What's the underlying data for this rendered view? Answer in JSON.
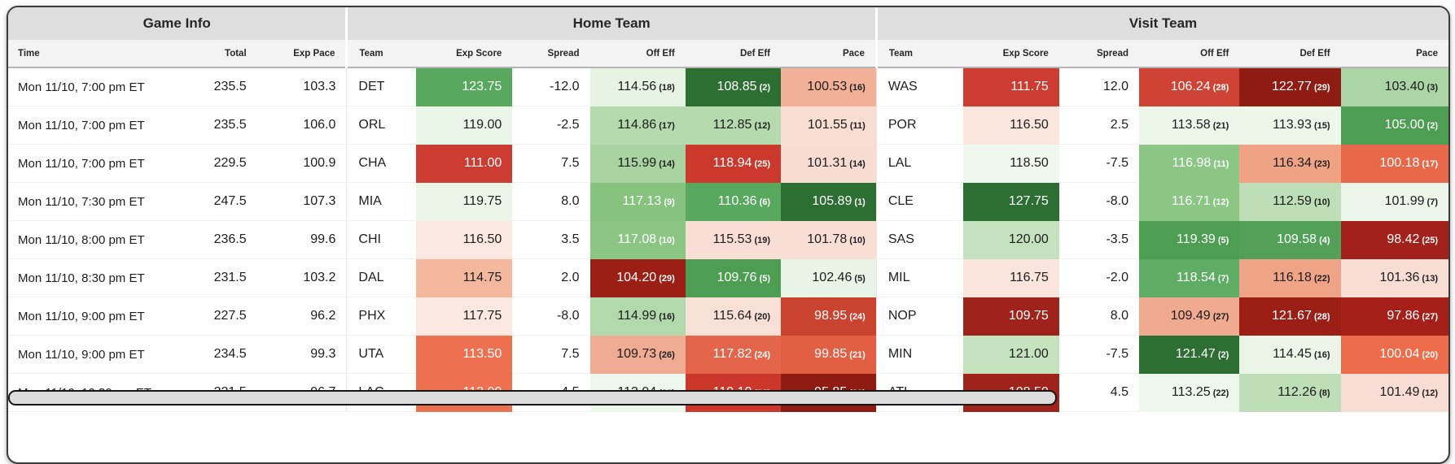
{
  "header": {
    "groups": [
      {
        "label": "Game Info",
        "span": 3
      },
      {
        "label": "Home Team",
        "span": 6
      },
      {
        "label": "Visit Team",
        "span": 6
      }
    ],
    "columns": [
      "Time",
      "Total",
      "Exp Pace",
      "Team",
      "Exp Score",
      "Spread",
      "Off Eff",
      "Def Eff",
      "Pace",
      "Team",
      "Exp Score",
      "Spread",
      "Off Eff",
      "Def Eff",
      "Pace"
    ]
  },
  "colors": {
    "group_header_bg": "#dedede",
    "col_header_bg": "#f3f3f3",
    "card_border": "#3a3a3a",
    "positive_green_dark": "#2d6e33",
    "negative_red_dark": "#8e1c12"
  },
  "scrollbar": {
    "thumb_width_pct": 72.6
  },
  "rows": [
    {
      "time": "Mon 11/10, 7:00 pm ET",
      "total": "235.5",
      "exp_pace": "103.3",
      "home": {
        "team": "DET",
        "exp_score": {
          "v": "123.75",
          "bg": "#58a85e",
          "fg": "#ffffff"
        },
        "spread": "-12.0",
        "off_eff": {
          "v": "114.56",
          "r": "18",
          "bg": "#e7f3e3",
          "fg": "#1d1d1d"
        },
        "def_eff": {
          "v": "108.85",
          "r": "2",
          "bg": "#2d6e33",
          "fg": "#ffffff"
        },
        "pace": {
          "v": "100.53",
          "r": "16",
          "bg": "#f2b096",
          "fg": "#1d1d1d"
        }
      },
      "visit": {
        "team": "WAS",
        "exp_score": {
          "v": "111.75",
          "bg": "#cd3c30",
          "fg": "#ffffff"
        },
        "spread": "12.0",
        "off_eff": {
          "v": "106.24",
          "r": "28",
          "bg": "#cf4334",
          "fg": "#ffffff"
        },
        "def_eff": {
          "v": "122.77",
          "r": "29",
          "bg": "#8e1c12",
          "fg": "#ffffff"
        },
        "pace": {
          "v": "103.40",
          "r": "3",
          "bg": "#abd5a4",
          "fg": "#1d1d1d"
        }
      }
    },
    {
      "time": "Mon 11/10, 7:00 pm ET",
      "total": "235.5",
      "exp_pace": "106.0",
      "home": {
        "team": "ORL",
        "exp_score": {
          "v": "119.00",
          "bg": "#e9f5e6",
          "fg": "#1d1d1d"
        },
        "spread": "-2.5",
        "off_eff": {
          "v": "114.86",
          "r": "17",
          "bg": "#b4daad",
          "fg": "#1d1d1d"
        },
        "def_eff": {
          "v": "112.85",
          "r": "12",
          "bg": "#b4daad",
          "fg": "#1d1d1d"
        },
        "pace": {
          "v": "101.55",
          "r": "11",
          "bg": "#f8ddd3",
          "fg": "#1d1d1d"
        }
      },
      "visit": {
        "team": "POR",
        "exp_score": {
          "v": "116.50",
          "bg": "#fae6dd",
          "fg": "#1d1d1d"
        },
        "spread": "2.5",
        "off_eff": {
          "v": "113.58",
          "r": "21",
          "bg": "#ecf6e9",
          "fg": "#1d1d1d"
        },
        "def_eff": {
          "v": "113.93",
          "r": "15",
          "bg": "#ecf6e9",
          "fg": "#1d1d1d"
        },
        "pace": {
          "v": "105.00",
          "r": "2",
          "bg": "#4d9e53",
          "fg": "#ffffff"
        }
      }
    },
    {
      "time": "Mon 11/10, 7:00 pm ET",
      "total": "229.5",
      "exp_pace": "100.9",
      "home": {
        "team": "CHA",
        "exp_score": {
          "v": "111.00",
          "bg": "#cd3c30",
          "fg": "#ffffff"
        },
        "spread": "7.5",
        "off_eff": {
          "v": "115.99",
          "r": "14",
          "bg": "#a9d3a1",
          "fg": "#1d1d1d"
        },
        "def_eff": {
          "v": "118.94",
          "r": "25",
          "bg": "#cb392c",
          "fg": "#ffffff"
        },
        "pace": {
          "v": "101.31",
          "r": "14",
          "bg": "#f8dcd2",
          "fg": "#1d1d1d"
        }
      },
      "visit": {
        "team": "LAL",
        "exp_score": {
          "v": "118.50",
          "bg": "#f0f8ee",
          "fg": "#1d1d1d"
        },
        "spread": "-7.5",
        "off_eff": {
          "v": "116.98",
          "r": "11",
          "bg": "#8bc685",
          "fg": "#ffffff"
        },
        "def_eff": {
          "v": "116.34",
          "r": "23",
          "bg": "#f0a285",
          "fg": "#1d1d1d"
        },
        "pace": {
          "v": "100.18",
          "r": "17",
          "bg": "#e8694a",
          "fg": "#ffffff"
        }
      }
    },
    {
      "time": "Mon 11/10, 7:30 pm ET",
      "total": "247.5",
      "exp_pace": "107.3",
      "home": {
        "team": "MIA",
        "exp_score": {
          "v": "119.75",
          "bg": "#ebf6e8",
          "fg": "#1d1d1d"
        },
        "spread": "8.0",
        "off_eff": {
          "v": "117.13",
          "r": "9",
          "bg": "#85c37f",
          "fg": "#ffffff"
        },
        "def_eff": {
          "v": "110.36",
          "r": "6",
          "bg": "#58a85e",
          "fg": "#ffffff"
        },
        "pace": {
          "v": "105.89",
          "r": "1",
          "bg": "#2d6e33",
          "fg": "#ffffff"
        }
      },
      "visit": {
        "team": "CLE",
        "exp_score": {
          "v": "127.75",
          "bg": "#2d6e33",
          "fg": "#ffffff"
        },
        "spread": "-8.0",
        "off_eff": {
          "v": "116.71",
          "r": "12",
          "bg": "#8bc685",
          "fg": "#ffffff"
        },
        "def_eff": {
          "v": "112.59",
          "r": "10",
          "bg": "#bedeb7",
          "fg": "#1d1d1d"
        },
        "pace": {
          "v": "101.99",
          "r": "7",
          "bg": "#edf6ea",
          "fg": "#1d1d1d"
        }
      }
    },
    {
      "time": "Mon 11/10, 8:00 pm ET",
      "total": "236.5",
      "exp_pace": "99.6",
      "home": {
        "team": "CHI",
        "exp_score": {
          "v": "116.50",
          "bg": "#fbe8e0",
          "fg": "#1d1d1d"
        },
        "spread": "3.5",
        "off_eff": {
          "v": "117.08",
          "r": "10",
          "bg": "#8bc685",
          "fg": "#ffffff"
        },
        "def_eff": {
          "v": "115.53",
          "r": "19",
          "bg": "#f9ded5",
          "fg": "#1d1d1d"
        },
        "pace": {
          "v": "101.78",
          "r": "10",
          "bg": "#f9ded5",
          "fg": "#1d1d1d"
        }
      },
      "visit": {
        "team": "SAS",
        "exp_score": {
          "v": "120.00",
          "bg": "#c5e2be",
          "fg": "#1d1d1d"
        },
        "spread": "-3.5",
        "off_eff": {
          "v": "119.39",
          "r": "5",
          "bg": "#4d9e53",
          "fg": "#ffffff"
        },
        "def_eff": {
          "v": "109.58",
          "r": "4",
          "bg": "#53a159",
          "fg": "#ffffff"
        },
        "pace": {
          "v": "98.42",
          "r": "25",
          "bg": "#a2211a",
          "fg": "#ffffff"
        }
      }
    },
    {
      "time": "Mon 11/10, 8:30 pm ET",
      "total": "231.5",
      "exp_pace": "103.2",
      "home": {
        "team": "DAL",
        "exp_score": {
          "v": "114.75",
          "bg": "#f3b89e",
          "fg": "#1d1d1d"
        },
        "spread": "2.0",
        "off_eff": {
          "v": "104.20",
          "r": "29",
          "bg": "#9b1f15",
          "fg": "#ffffff"
        },
        "def_eff": {
          "v": "109.76",
          "r": "5",
          "bg": "#4d9e53",
          "fg": "#ffffff"
        },
        "pace": {
          "v": "102.46",
          "r": "5",
          "bg": "#e9f4e6",
          "fg": "#1d1d1d"
        }
      },
      "visit": {
        "team": "MIL",
        "exp_score": {
          "v": "116.75",
          "bg": "#fae4db",
          "fg": "#1d1d1d"
        },
        "spread": "-2.0",
        "off_eff": {
          "v": "118.54",
          "r": "7",
          "bg": "#5fac64",
          "fg": "#ffffff"
        },
        "def_eff": {
          "v": "116.18",
          "r": "22",
          "bg": "#f0a487",
          "fg": "#1d1d1d"
        },
        "pace": {
          "v": "101.36",
          "r": "13",
          "bg": "#f8ddd4",
          "fg": "#1d1d1d"
        }
      }
    },
    {
      "time": "Mon 11/10, 9:00 pm ET",
      "total": "227.5",
      "exp_pace": "96.2",
      "home": {
        "team": "PHX",
        "exp_score": {
          "v": "117.75",
          "bg": "#fbe8e0",
          "fg": "#1d1d1d"
        },
        "spread": "-8.0",
        "off_eff": {
          "v": "114.99",
          "r": "16",
          "bg": "#b2d9ab",
          "fg": "#1d1d1d"
        },
        "def_eff": {
          "v": "115.64",
          "r": "20",
          "bg": "#f9e0d7",
          "fg": "#1d1d1d"
        },
        "pace": {
          "v": "98.95",
          "r": "24",
          "bg": "#ca432f",
          "fg": "#ffffff"
        }
      },
      "visit": {
        "team": "NOP",
        "exp_score": {
          "v": "109.75",
          "bg": "#a0231b",
          "fg": "#ffffff"
        },
        "spread": "8.0",
        "off_eff": {
          "v": "109.49",
          "r": "27",
          "bg": "#f0aa90",
          "fg": "#1d1d1d"
        },
        "def_eff": {
          "v": "121.67",
          "r": "28",
          "bg": "#9b1f15",
          "fg": "#ffffff"
        },
        "pace": {
          "v": "97.86",
          "r": "27",
          "bg": "#a62019",
          "fg": "#ffffff"
        }
      }
    },
    {
      "time": "Mon 11/10, 9:00 pm ET",
      "total": "234.5",
      "exp_pace": "99.3",
      "home": {
        "team": "UTA",
        "exp_score": {
          "v": "113.50",
          "bg": "#ed7150",
          "fg": "#ffffff"
        },
        "spread": "7.5",
        "off_eff": {
          "v": "109.73",
          "r": "26",
          "bg": "#f0ac92",
          "fg": "#1d1d1d"
        },
        "def_eff": {
          "v": "117.82",
          "r": "24",
          "bg": "#e3664a",
          "fg": "#ffffff"
        },
        "pace": {
          "v": "99.85",
          "r": "21",
          "bg": "#e25f44",
          "fg": "#ffffff"
        }
      },
      "visit": {
        "team": "MIN",
        "exp_score": {
          "v": "121.00",
          "bg": "#c6e3bf",
          "fg": "#1d1d1d"
        },
        "spread": "-7.5",
        "off_eff": {
          "v": "121.47",
          "r": "2",
          "bg": "#2d6e33",
          "fg": "#ffffff"
        },
        "def_eff": {
          "v": "114.45",
          "r": "16",
          "bg": "#eaf5e7",
          "fg": "#1d1d1d"
        },
        "pace": {
          "v": "100.04",
          "r": "20",
          "bg": "#ed6c4a",
          "fg": "#ffffff"
        }
      }
    },
    {
      "time": "Mon 11/10, 10:30 pm ET",
      "total": "221.5",
      "exp_pace": "96.7",
      "home": {
        "team": "LAC",
        "exp_score": {
          "v": "113.00",
          "bg": "#ed7150",
          "fg": "#ffffff"
        },
        "spread": "-4.5",
        "off_eff": {
          "v": "113.94",
          "r": "20",
          "bg": "#eef7eb",
          "fg": "#1d1d1d"
        },
        "def_eff": {
          "v": "119.10",
          "r": "26",
          "bg": "#cb372a",
          "fg": "#ffffff"
        },
        "pace": {
          "v": "95.85",
          "r": "30",
          "bg": "#8e1c12",
          "fg": "#ffffff"
        }
      },
      "visit": {
        "team": "ATL",
        "exp_score": {
          "v": "108.50",
          "bg": "#a0231b",
          "fg": "#ffffff"
        },
        "spread": "4.5",
        "off_eff": {
          "v": "113.25",
          "r": "22",
          "bg": "#eef7eb",
          "fg": "#1d1d1d"
        },
        "def_eff": {
          "v": "112.26",
          "r": "8",
          "bg": "#bedeb7",
          "fg": "#1d1d1d"
        },
        "pace": {
          "v": "101.49",
          "r": "12",
          "bg": "#f8ddd4",
          "fg": "#1d1d1d"
        }
      }
    }
  ]
}
